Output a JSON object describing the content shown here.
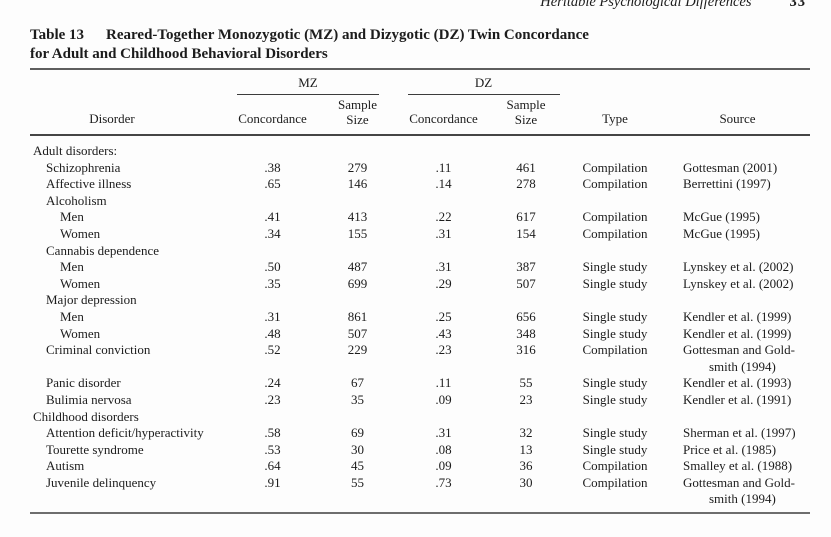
{
  "page": {
    "running_head": "Heritable Psychological Differences",
    "page_number": "33"
  },
  "table": {
    "label": "Table 13",
    "title_line1": "Reared-Together Monozygotic (MZ) and Dizygotic (DZ) Twin Concordance",
    "title_line2": "for Adult and Childhood Behavioral Disorders",
    "col_groups": {
      "mz": "MZ",
      "dz": "DZ"
    },
    "headers": {
      "disorder": "Disorder",
      "concordance": "Concordance",
      "sample_size": "Sample\nSize",
      "type": "Type",
      "source": "Source"
    },
    "rows": [
      {
        "indent": 0,
        "disorder": "Adult disorders:"
      },
      {
        "indent": 1,
        "disorder": "Schizophrenia",
        "mz_concordance": ".38",
        "mz_sample_size": "279",
        "dz_concordance": ".11",
        "dz_sample_size": "461",
        "type": "Compilation",
        "source": "Gottesman (2001)"
      },
      {
        "indent": 1,
        "disorder": "Affective illness",
        "mz_concordance": ".65",
        "mz_sample_size": "146",
        "dz_concordance": ".14",
        "dz_sample_size": "278",
        "type": "Compilation",
        "source": "Berrettini (1997)"
      },
      {
        "indent": 1,
        "disorder": "Alcoholism"
      },
      {
        "indent": 2,
        "disorder": "Men",
        "mz_concordance": ".41",
        "mz_sample_size": "413",
        "dz_concordance": ".22",
        "dz_sample_size": "617",
        "type": "Compilation",
        "source": "McGue (1995)"
      },
      {
        "indent": 2,
        "disorder": "Women",
        "mz_concordance": ".34",
        "mz_sample_size": "155",
        "dz_concordance": ".31",
        "dz_sample_size": "154",
        "type": "Compilation",
        "source": "McGue (1995)"
      },
      {
        "indent": 1,
        "disorder": "Cannabis dependence"
      },
      {
        "indent": 2,
        "disorder": "Men",
        "mz_concordance": ".50",
        "mz_sample_size": "487",
        "dz_concordance": ".31",
        "dz_sample_size": "387",
        "type": "Single study",
        "source": "Lynskey et al. (2002)"
      },
      {
        "indent": 2,
        "disorder": "Women",
        "mz_concordance": ".35",
        "mz_sample_size": "699",
        "dz_concordance": ".29",
        "dz_sample_size": "507",
        "type": "Single study",
        "source": "Lynskey et al. (2002)"
      },
      {
        "indent": 1,
        "disorder": "Major depression"
      },
      {
        "indent": 2,
        "disorder": "Men",
        "mz_concordance": ".31",
        "mz_sample_size": "861",
        "dz_concordance": ".25",
        "dz_sample_size": "656",
        "type": "Single study",
        "source": "Kendler et al. (1999)"
      },
      {
        "indent": 2,
        "disorder": "Women",
        "mz_concordance": ".48",
        "mz_sample_size": "507",
        "dz_concordance": ".43",
        "dz_sample_size": "348",
        "type": "Single study",
        "source": "Kendler et al. (1999)"
      },
      {
        "indent": 1,
        "disorder": "Criminal conviction",
        "mz_concordance": ".52",
        "mz_sample_size": "229",
        "dz_concordance": ".23",
        "dz_sample_size": "316",
        "type": "Compilation",
        "source": "Gottesman and Gold-\n        smith (1994)"
      },
      {
        "indent": 1,
        "disorder": "Panic disorder",
        "mz_concordance": ".24",
        "mz_sample_size": "67",
        "dz_concordance": ".11",
        "dz_sample_size": "55",
        "type": "Single study",
        "source": "Kendler et al. (1993)"
      },
      {
        "indent": 1,
        "disorder": "Bulimia nervosa",
        "mz_concordance": ".23",
        "mz_sample_size": "35",
        "dz_concordance": ".09",
        "dz_sample_size": "23",
        "type": "Single study",
        "source": "Kendler et al. (1991)"
      },
      {
        "indent": 0,
        "disorder": "Childhood disorders"
      },
      {
        "indent": 1,
        "disorder": "Attention deficit/hyperactivity",
        "mz_concordance": ".58",
        "mz_sample_size": "69",
        "dz_concordance": ".31",
        "dz_sample_size": "32",
        "type": "Single study",
        "source": "Sherman et al. (1997)"
      },
      {
        "indent": 1,
        "disorder": "Tourette syndrome",
        "mz_concordance": ".53",
        "mz_sample_size": "30",
        "dz_concordance": ".08",
        "dz_sample_size": "13",
        "type": "Single study",
        "source": "Price et al. (1985)"
      },
      {
        "indent": 1,
        "disorder": "Autism",
        "mz_concordance": ".64",
        "mz_sample_size": "45",
        "dz_concordance": ".09",
        "dz_sample_size": "36",
        "type": "Compilation",
        "source": "Smalley et al. (1988)"
      },
      {
        "indent": 1,
        "disorder": "Juvenile delinquency",
        "mz_concordance": ".91",
        "mz_sample_size": "55",
        "dz_concordance": ".73",
        "dz_sample_size": "30",
        "type": "Compilation",
        "source": "Gottesman and Gold-\n        smith (1994)"
      }
    ]
  }
}
